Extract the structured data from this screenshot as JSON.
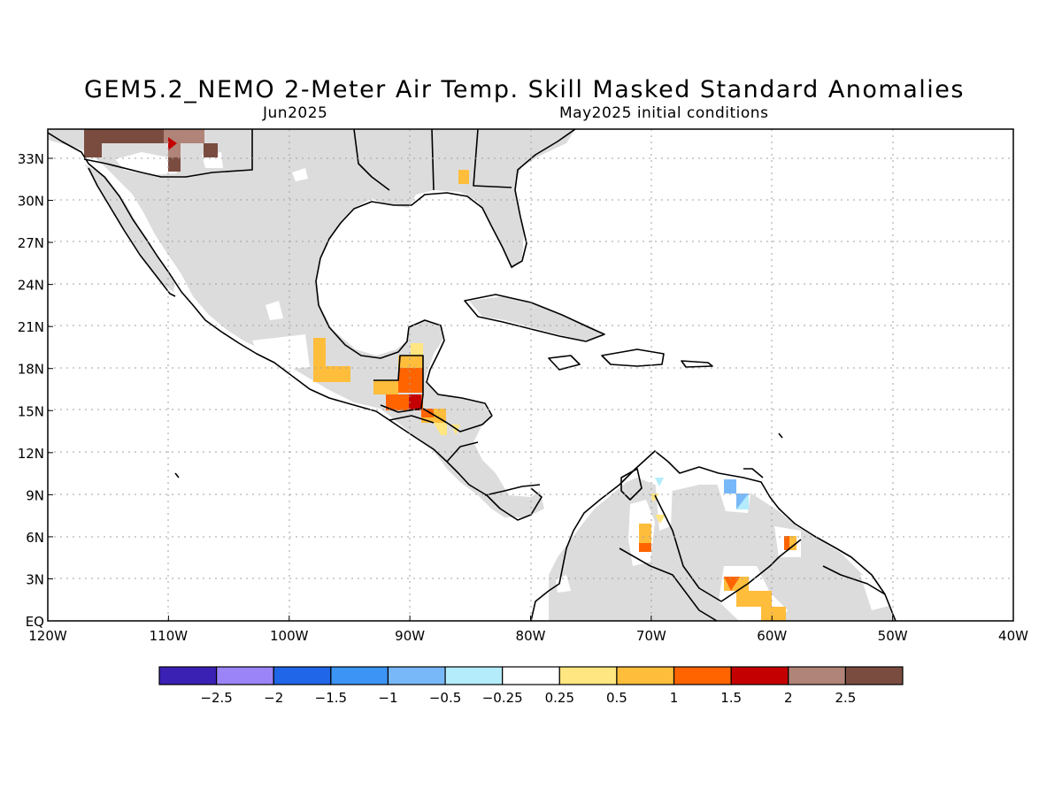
{
  "title": "GEM5.2_NEMO 2-Meter Air Temp. Skill Masked Standard Anomalies",
  "subtitle_left": "Jun2025",
  "subtitle_right": "May2025 initial conditions",
  "lat_labels": [
    "33N",
    "30N",
    "27N",
    "24N",
    "21N",
    "18N",
    "15N",
    "12N",
    "9N",
    "6N",
    "3N",
    "EQ"
  ],
  "lon_labels": [
    "120W",
    "110W",
    "100W",
    "90W",
    "80W",
    "70W",
    "60W",
    "50W",
    "40W"
  ],
  "colorbar": {
    "labels": [
      "-2.5",
      "-2",
      "-1.5",
      "-1",
      "-0.5",
      "-0.25",
      "0.25",
      "0.5",
      "1",
      "1.5",
      "2",
      "2.5"
    ],
    "colors": [
      "#3b20b4",
      "#9a84f8",
      "#1f66e8",
      "#3c94f4",
      "#78b8f8",
      "#b4ecfc",
      "#ffffff",
      "#ffe680",
      "#ffbd3c",
      "#ff6400",
      "#c40000",
      "#b08478",
      "#7a4c40"
    ]
  }
}
